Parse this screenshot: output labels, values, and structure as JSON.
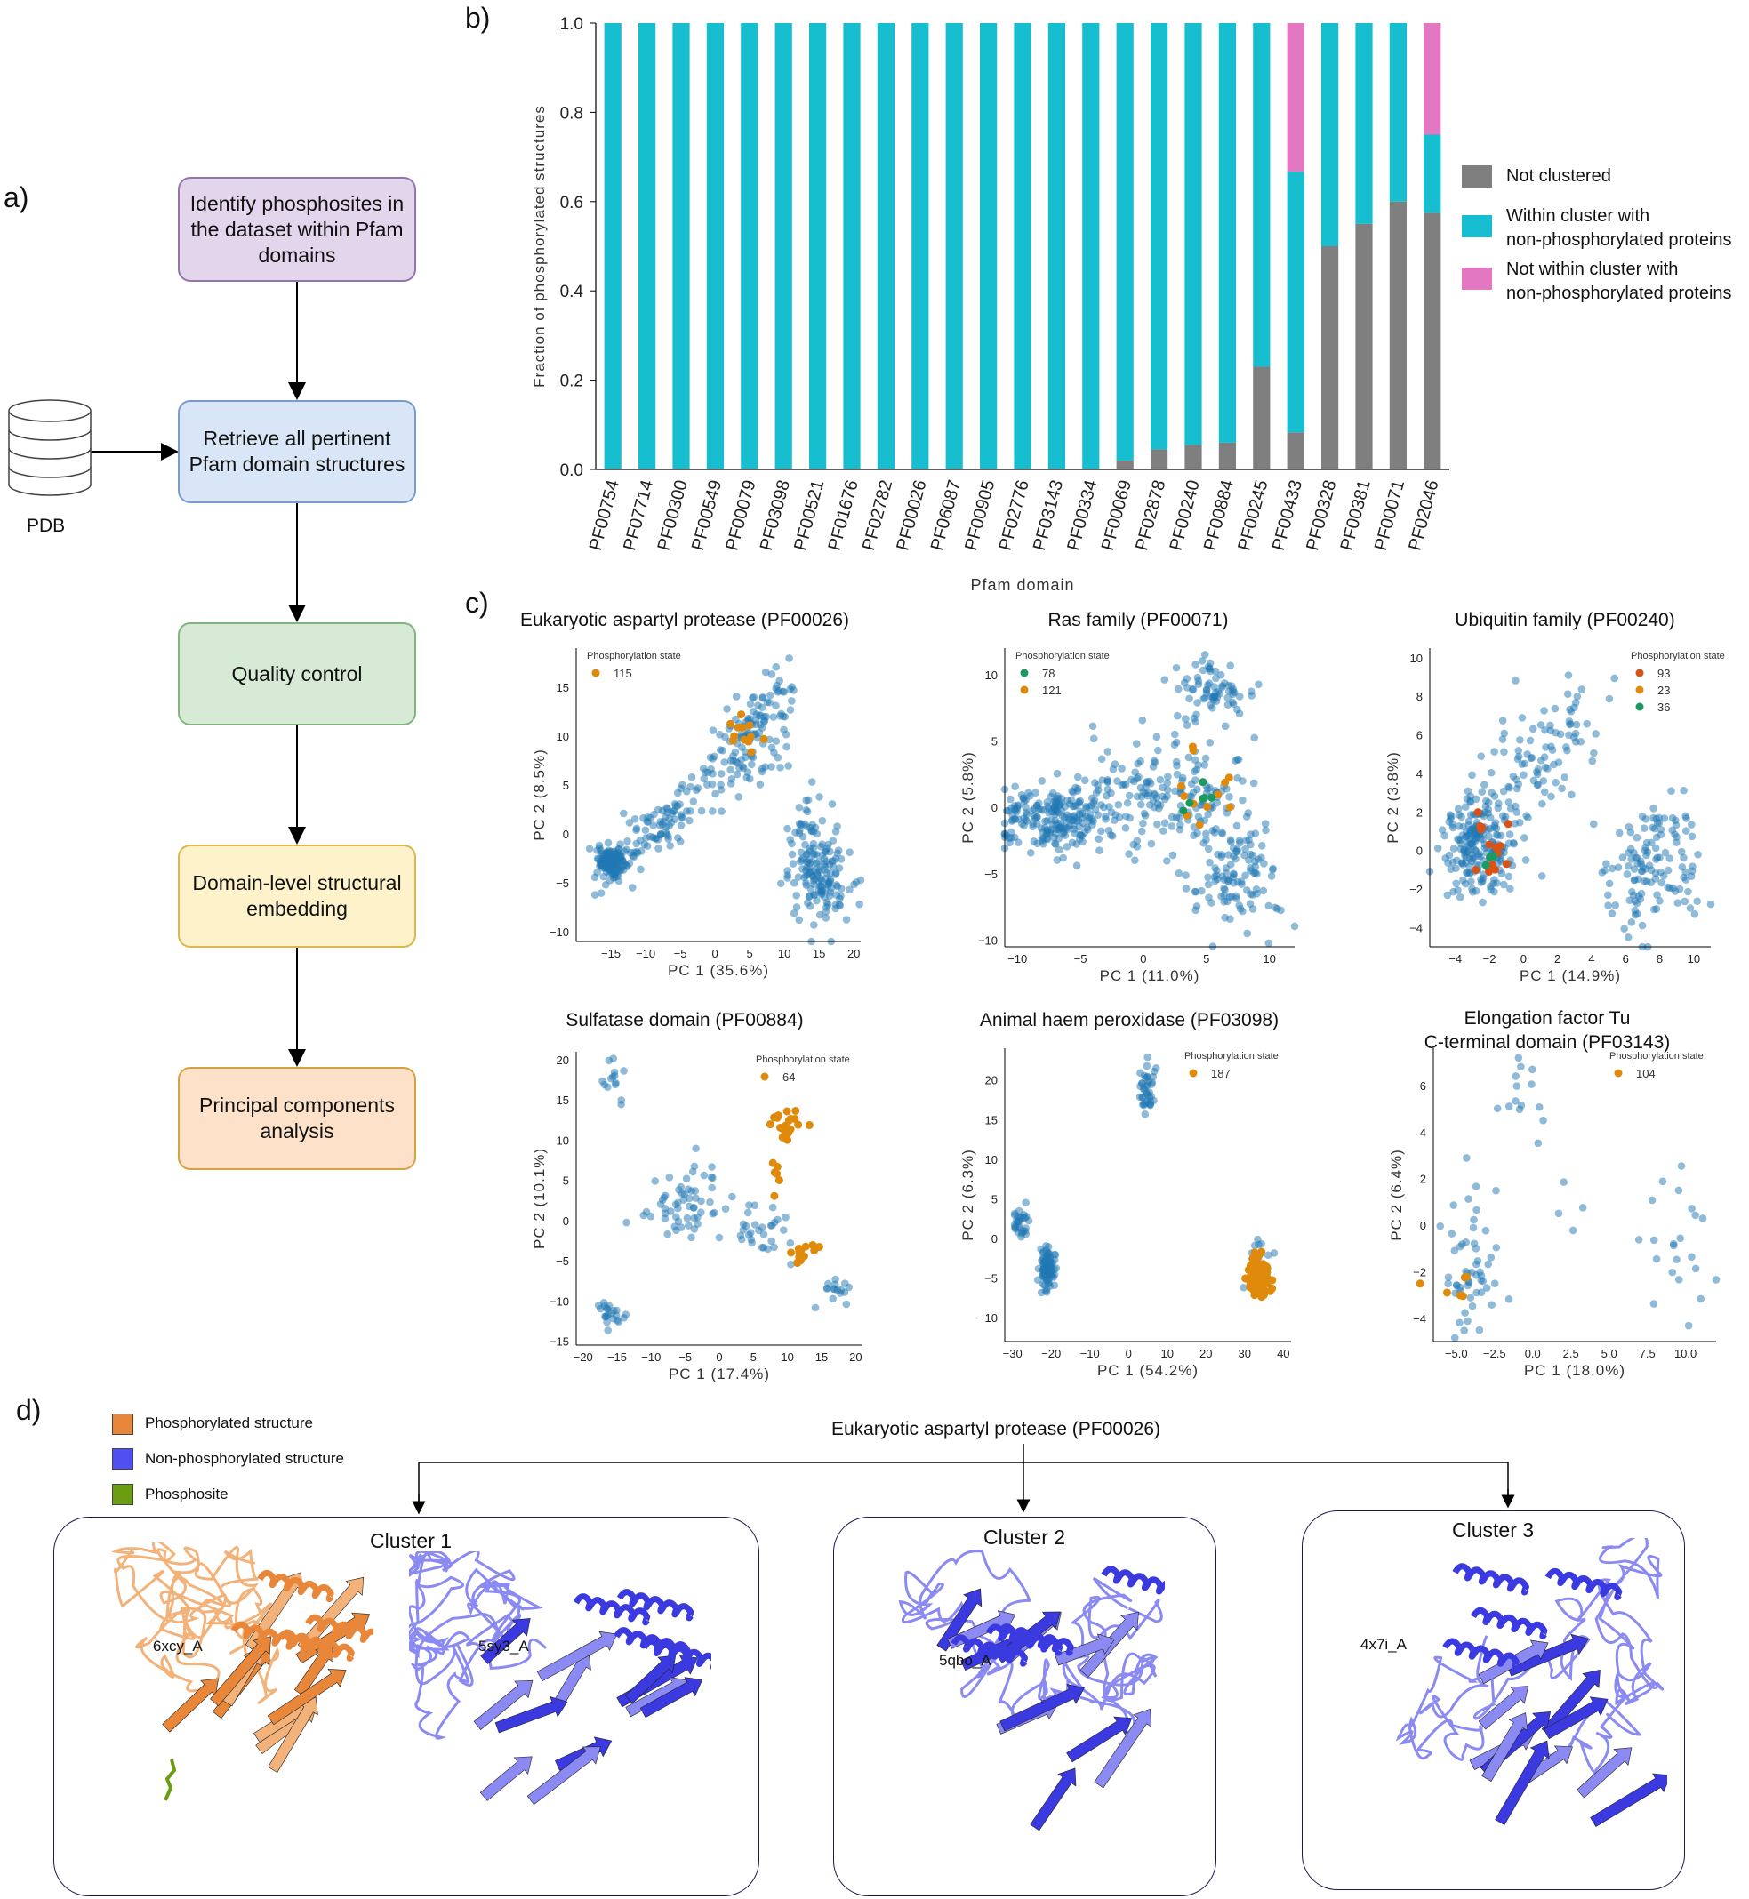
{
  "panels": {
    "a": "a)",
    "b": "b)",
    "c": "c)",
    "d": "d)"
  },
  "flowchart": {
    "steps": [
      {
        "label": "Identify phosphosites in the dataset within Pfam domains",
        "color": "#e3d5ec"
      },
      {
        "label": "Retrieve all pertinent Pfam domain structures",
        "color": "#d9e6f7"
      },
      {
        "label": "Quality control",
        "color": "#d6ead5"
      },
      {
        "label": "Domain-level structural embedding",
        "color": "#fdf2c9"
      },
      {
        "label": "Principal components analysis",
        "color": "#fde2c9"
      }
    ],
    "database_label": "PDB"
  },
  "chart_data": [
    {
      "type": "bar",
      "stacked": true,
      "categories": [
        "PF00754",
        "PF07714",
        "PF00300",
        "PF00549",
        "PF00079",
        "PF03098",
        "PF00521",
        "PF01676",
        "PF02782",
        "PF00026",
        "PF06087",
        "PF00905",
        "PF02776",
        "PF03143",
        "PF00334",
        "PF00069",
        "PF02878",
        "PF00240",
        "PF00884",
        "PF00245",
        "PF00433",
        "PF00328",
        "PF00381",
        "PF00071",
        "PF02046"
      ],
      "series": [
        {
          "name": "Not clustered",
          "color": "#7f7f7f",
          "values": [
            0,
            0,
            0,
            0,
            0,
            0,
            0,
            0,
            0,
            0,
            0,
            0,
            0,
            0,
            0,
            0.02,
            0.045,
            0.055,
            0.06,
            0.23,
            0.083,
            0.5,
            0.55,
            0.6,
            0.575
          ]
        },
        {
          "name": "Within cluster with non-phosphorylated proteins",
          "color": "#17becf",
          "values": [
            1,
            1,
            1,
            1,
            1,
            1,
            1,
            1,
            1,
            1,
            1,
            1,
            1,
            1,
            1,
            0.98,
            0.955,
            0.945,
            0.94,
            0.77,
            0.584,
            0.5,
            0.45,
            0.4,
            0.175
          ]
        },
        {
          "name": "Not within cluster with non-phosphorylated proteins",
          "color": "#e377c2",
          "values": [
            0,
            0,
            0,
            0,
            0,
            0,
            0,
            0,
            0,
            0,
            0,
            0,
            0,
            0,
            0,
            0,
            0,
            0,
            0,
            0,
            0.333,
            0,
            0,
            0,
            0.25
          ]
        }
      ],
      "legend_labels": [
        "Not clustered",
        "Within cluster with\nnon-phosphorylated proteins",
        "Not within cluster with\nnon-phosphorylated proteins"
      ],
      "xlabel": "Pfam domain",
      "ylabel": "Fraction of phosphorylated structures",
      "ylim": [
        0,
        1.0
      ],
      "yticks": [
        "0.0",
        "0.2",
        "0.4",
        "0.6",
        "0.8",
        "1.0"
      ]
    },
    {
      "type": "scatter",
      "title": "Eukaryotic aspartyl protease  (PF00026)",
      "xlabel": "PC 1 (35.6%)",
      "ylabel": "PC 2 (8.5%)",
      "xlim": [
        -20,
        21
      ],
      "ylim": [
        -11,
        19
      ],
      "xticks": [
        -15,
        -10,
        -5,
        0,
        5,
        10,
        15,
        20
      ],
      "yticks": [
        -10,
        -5,
        0,
        5,
        10,
        15
      ],
      "legend_title": "Phosphorylation state",
      "legend": [
        {
          "label": "115",
          "color": "#e08a0b"
        }
      ],
      "clusters": [
        {
          "cx": -15,
          "cy": -2.8,
          "sx": 1.3,
          "sy": 0.7,
          "n": 140
        },
        {
          "cx": -8,
          "cy": 1,
          "sx": 3.5,
          "sy": 2.5,
          "n": 90,
          "corr": 0.8
        },
        {
          "cx": 5,
          "cy": 10,
          "sx": 3.2,
          "sy": 3.5,
          "n": 140,
          "corr": 0.6
        },
        {
          "cx": 15,
          "cy": -3.5,
          "sx": 2.0,
          "sy": 3.0,
          "n": 170,
          "corr": -0.3
        }
      ],
      "highlights": [
        {
          "color": "#e08a0b",
          "cx": 4,
          "cy": 11,
          "sx": 1.2,
          "sy": 1.5,
          "n": 12
        }
      ]
    },
    {
      "type": "scatter",
      "title": "Ras family  (PF00071)",
      "xlabel": "PC 1 (11.0%)",
      "ylabel": "PC 2 (5.8%)",
      "xlim": [
        -11,
        12
      ],
      "ylim": [
        -10.5,
        12
      ],
      "xticks": [
        -10,
        -5,
        0,
        5,
        10
      ],
      "yticks": [
        -10,
        -5,
        0,
        5,
        10
      ],
      "legend_title": "Phosphorylation state",
      "legend": [
        {
          "label": "78",
          "color": "#1a9a60"
        },
        {
          "label": "121",
          "color": "#e08a0b"
        }
      ],
      "clusters": [
        {
          "cx": -7,
          "cy": -0.8,
          "sx": 2.2,
          "sy": 1.2,
          "n": 220
        },
        {
          "cx": 2.5,
          "cy": 1.0,
          "sx": 3.2,
          "sy": 2.0,
          "n": 180
        },
        {
          "cx": 5.5,
          "cy": 9.0,
          "sx": 1.4,
          "sy": 1.2,
          "n": 70
        },
        {
          "cx": 7.2,
          "cy": -5.5,
          "sx": 1.8,
          "sy": 2.0,
          "n": 110
        }
      ],
      "highlights": [
        {
          "color": "#e08a0b",
          "cx": 4.5,
          "cy": 2,
          "sx": 1.5,
          "sy": 1.5,
          "n": 12
        },
        {
          "color": "#1a9a60",
          "cx": 4.5,
          "cy": 0.5,
          "sx": 1,
          "sy": 1,
          "n": 6
        }
      ]
    },
    {
      "type": "scatter",
      "title": "Ubiquitin family  (PF00240)",
      "xlabel": "PC 1 (14.9%)",
      "ylabel": "PC 2 (3.8%)",
      "xlim": [
        -5.5,
        11
      ],
      "ylim": [
        -5,
        10.5
      ],
      "xticks": [
        -4,
        -2,
        0,
        2,
        4,
        6,
        8,
        10
      ],
      "yticks": [
        -4,
        -2,
        0,
        2,
        4,
        6,
        8,
        10
      ],
      "legend_title": "Phosphorylation state",
      "legend": [
        {
          "label": "93",
          "color": "#d95319"
        },
        {
          "label": "23",
          "color": "#e08a0b"
        },
        {
          "label": "36",
          "color": "#1a9a60"
        }
      ],
      "clusters": [
        {
          "cx": -2.6,
          "cy": 0.3,
          "sx": 1.0,
          "sy": 1.4,
          "n": 200
        },
        {
          "cx": 1,
          "cy": 4,
          "sx": 1.8,
          "sy": 2.2,
          "n": 110,
          "corr": 0.6
        },
        {
          "cx": 7.5,
          "cy": -0.7,
          "sx": 1.6,
          "sy": 1.8,
          "n": 130
        }
      ],
      "highlights": [
        {
          "color": "#d95319",
          "cx": -2.2,
          "cy": 0,
          "sx": 0.8,
          "sy": 1.0,
          "n": 14
        },
        {
          "color": "#1a9a60",
          "cx": -2.0,
          "cy": -0.5,
          "sx": 0.3,
          "sy": 0.3,
          "n": 3
        }
      ]
    },
    {
      "type": "scatter",
      "title": "Sulfatase domain  (PF00884)",
      "xlabel": "PC 1 (17.4%)",
      "ylabel": "PC 2 (10.1%)",
      "xlim": [
        -21,
        21
      ],
      "ylim": [
        -15.5,
        21
      ],
      "xticks": [
        -20,
        -15,
        -10,
        -5,
        0,
        5,
        10,
        15,
        20
      ],
      "yticks": [
        -15,
        -10,
        -5,
        0,
        5,
        10,
        15,
        20
      ],
      "legend_title": "Phosphorylation state",
      "legend": [
        {
          "label": "64",
          "color": "#e08a0b"
        }
      ],
      "clusters": [
        {
          "cx": -15.5,
          "cy": 16,
          "sx": 0.8,
          "sy": 2.0,
          "n": 14
        },
        {
          "cx": -4.5,
          "cy": 1.5,
          "sx": 3.0,
          "sy": 2.5,
          "n": 60
        },
        {
          "cx": 5.5,
          "cy": -1,
          "sx": 2.0,
          "sy": 1.5,
          "n": 30
        },
        {
          "cx": -16,
          "cy": -11.8,
          "sx": 0.9,
          "sy": 1.0,
          "n": 22
        },
        {
          "cx": 17,
          "cy": -9,
          "sx": 1.2,
          "sy": 0.9,
          "n": 16
        }
      ],
      "highlights": [
        {
          "color": "#e08a0b",
          "cx": 9.5,
          "cy": 12,
          "sx": 1.0,
          "sy": 1.0,
          "n": 22
        },
        {
          "color": "#e08a0b",
          "cx": 12,
          "cy": -4,
          "sx": 1.0,
          "sy": 0.6,
          "n": 14
        },
        {
          "color": "#e08a0b",
          "cx": 8,
          "cy": 6.5,
          "sx": 0.4,
          "sy": 1.5,
          "n": 6
        }
      ]
    },
    {
      "type": "scatter",
      "title": "Animal haem peroxidase  (PF03098)",
      "xlabel": "PC 1 (54.2%)",
      "ylabel": "PC 2 (6.3%)",
      "xlim": [
        -32,
        42
      ],
      "ylim": [
        -13,
        24
      ],
      "xticks": [
        -30,
        -20,
        -10,
        0,
        10,
        20,
        30,
        40
      ],
      "yticks": [
        -10,
        -5,
        0,
        5,
        10,
        15,
        20
      ],
      "legend_title": "Phosphorylation state",
      "legend": [
        {
          "label": "187",
          "color": "#e08a0b"
        }
      ],
      "clusters": [
        {
          "cx": -28,
          "cy": 1.5,
          "sx": 1.0,
          "sy": 1.2,
          "n": 30
        },
        {
          "cx": -21,
          "cy": -3.5,
          "sx": 1.0,
          "sy": 1.5,
          "n": 90
        },
        {
          "cx": 5,
          "cy": 19,
          "sx": 1.0,
          "sy": 1.8,
          "n": 40
        },
        {
          "cx": 33,
          "cy": -3,
          "sx": 1.5,
          "sy": 2.0,
          "n": 30
        }
      ],
      "highlights": [
        {
          "color": "#e08a0b",
          "cx": 33.5,
          "cy": -4.5,
          "sx": 1.5,
          "sy": 1.2,
          "n": 90
        }
      ]
    },
    {
      "type": "scatter",
      "title": "Elongation factor Tu\nC-terminal domain  (PF03143)",
      "xlabel": "PC 1 (18.0%)",
      "ylabel": "PC 2 (6.4%)",
      "xlim": [
        -6.5,
        12
      ],
      "ylim": [
        -5,
        7.6
      ],
      "xticks": [
        -5.0,
        -2.5,
        0.0,
        2.5,
        5.0,
        7.5,
        10.0
      ],
      "yticks": [
        -4,
        -2,
        0,
        2,
        4,
        6
      ],
      "legend_title": "Phosphorylation state",
      "legend": [
        {
          "label": "104",
          "color": "#e08a0b"
        }
      ],
      "clusters": [
        {
          "cx": -4.2,
          "cy": -1.8,
          "sx": 1.0,
          "sy": 1.5,
          "n": 55
        },
        {
          "cx": -0.5,
          "cy": 5.5,
          "sx": 0.8,
          "sy": 0.8,
          "n": 14
        },
        {
          "cx": 9,
          "cy": -1,
          "sx": 1.4,
          "sy": 1.5,
          "n": 22
        },
        {
          "cx": 2.5,
          "cy": 1.5,
          "sx": 0.8,
          "sy": 1.0,
          "n": 4
        }
      ],
      "highlights": [
        {
          "color": "#e08a0b",
          "cx": -4.8,
          "cy": -2.7,
          "sx": 0.8,
          "sy": 0.4,
          "n": 6
        }
      ]
    }
  ],
  "panel_d": {
    "legend": [
      {
        "label": "Phosphorylated structure",
        "color": "#e8873a"
      },
      {
        "label": "Non-phosphorylated structure",
        "color": "#5050f0"
      },
      {
        "label": "Phosphosite",
        "color": "#6b9d12"
      }
    ],
    "title": "Eukaryotic aspartyl protease  (PF00026)",
    "clusters": [
      {
        "title": "Cluster 1",
        "structures": [
          "6xcy_A",
          "5sy3_A"
        ]
      },
      {
        "title": "Cluster 2",
        "structures": [
          "5qbo_A"
        ]
      },
      {
        "title": "Cluster 3",
        "structures": [
          "4x7i_A"
        ]
      }
    ]
  }
}
